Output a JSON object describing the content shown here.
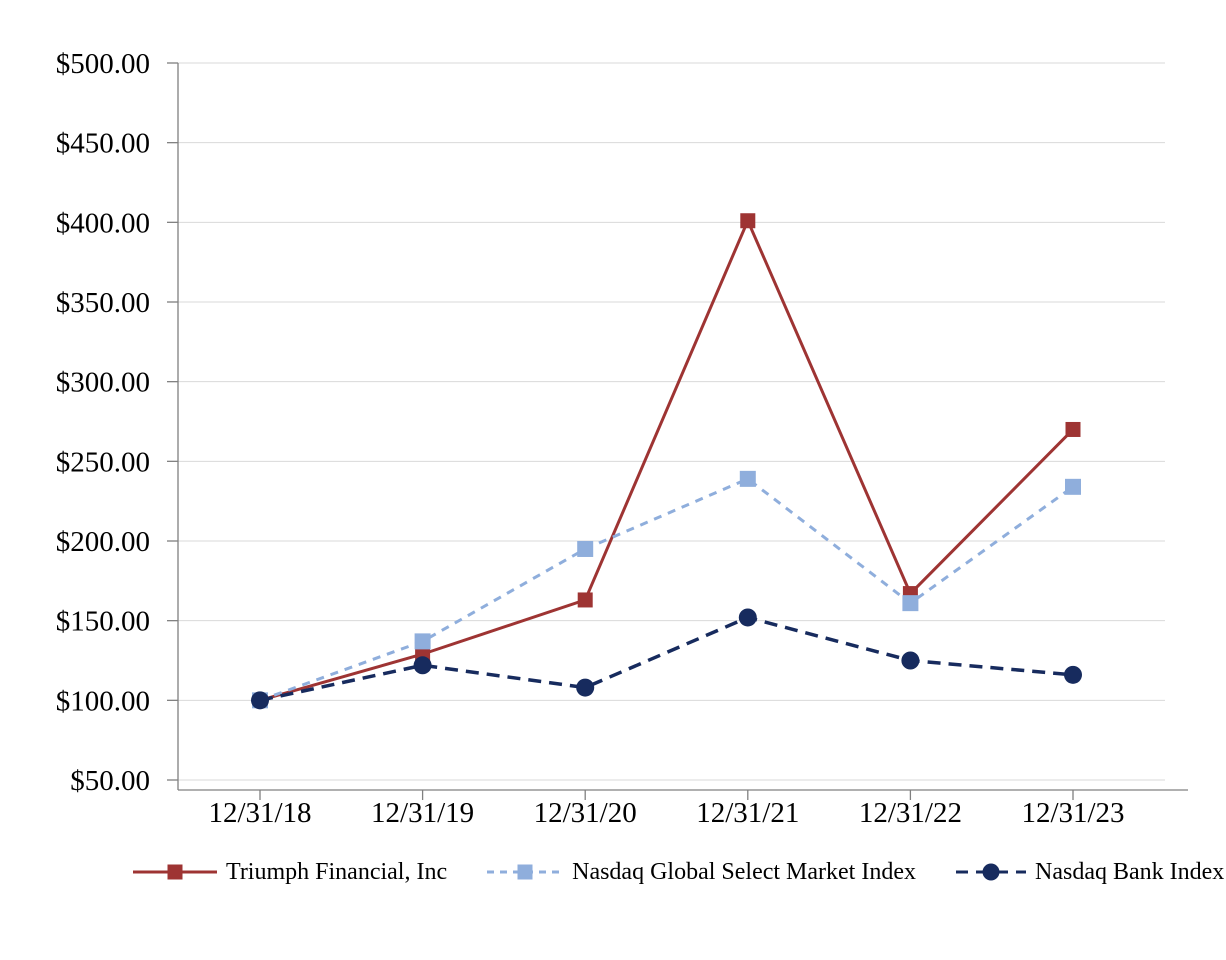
{
  "page": {
    "background": "#FFFFFF"
  },
  "chart_data": {
    "type": "line",
    "title": "",
    "xlabel": "",
    "ylabel": "",
    "x_labels": [
      "12/31/18",
      "12/31/19",
      "12/31/20",
      "12/31/21",
      "12/31/22",
      "12/31/23"
    ],
    "y_ticks": [
      {
        "value": 50,
        "label": "$50.00"
      },
      {
        "value": 100,
        "label": "$100.00"
      },
      {
        "value": 150,
        "label": "$150.00"
      },
      {
        "value": 200,
        "label": "$200.00"
      },
      {
        "value": 250,
        "label": "$250.00"
      },
      {
        "value": 300,
        "label": "$300.00"
      },
      {
        "value": 350,
        "label": "$350.00"
      },
      {
        "value": 400,
        "label": "$400.00"
      },
      {
        "value": 450,
        "label": "$450.00"
      },
      {
        "value": 500,
        "label": "$500.00"
      }
    ],
    "ylim": [
      50,
      500
    ],
    "grid": true,
    "legend_position": "bottom",
    "colors": {
      "axis": "#808080",
      "gridline": "#D9D9D9",
      "tick_label": "#000000"
    },
    "series": [
      {
        "name": "Triumph Financial, Inc",
        "color": "#9E3433",
        "marker": "square",
        "line_style": "solid",
        "values": [
          100,
          129,
          163,
          401,
          167,
          270
        ]
      },
      {
        "name": "Nasdaq Global Select Market Index",
        "color": "#8FAEDC",
        "marker": "square",
        "line_style": "dashed",
        "values": [
          100,
          137,
          195,
          239,
          161,
          234
        ]
      },
      {
        "name": "Nasdaq Bank Index",
        "color": "#172B5E",
        "marker": "circle",
        "line_style": "long-dash",
        "values": [
          100,
          122,
          108,
          152,
          125,
          116
        ]
      }
    ]
  }
}
